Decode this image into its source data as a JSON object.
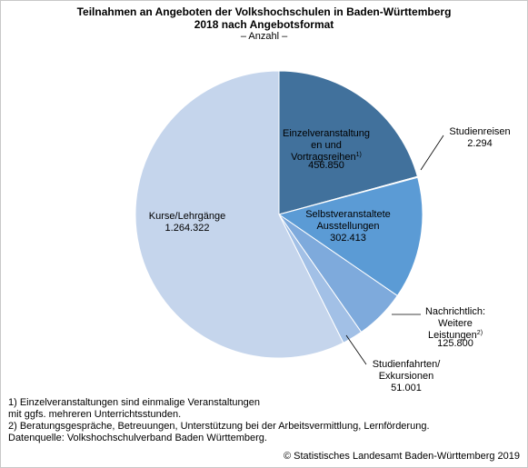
{
  "chart_data": {
    "type": "pie",
    "title_line1": "Teilnahmen an Angeboten der Volkshochschulen in Baden-Württemberg",
    "title_line2": "2018 nach Angebotsformat",
    "subtitle": "– Anzahl –",
    "slices": [
      {
        "label_lines": [
          "Einzelveranstaltung",
          "en und",
          "Vortragsreihen"
        ],
        "superscript": "1)",
        "value": 456850,
        "value_label": "456.850",
        "color": "#41719c"
      },
      {
        "label_lines": [
          "Studienreisen"
        ],
        "superscript": "",
        "value": 2294,
        "value_label": "2.294",
        "color": "#3d6a96"
      },
      {
        "label_lines": [
          "Selbstveranstaltete",
          "Ausstellungen"
        ],
        "superscript": "",
        "value": 302413,
        "value_label": "302.413",
        "color": "#5b9bd5"
      },
      {
        "label_lines": [
          "Nachrichtlich:",
          "Weitere",
          "Leistungen"
        ],
        "superscript": "2)",
        "value": 125800,
        "value_label": "125.800",
        "color": "#7eaadc"
      },
      {
        "label_lines": [
          "Studienfahrten/",
          "Exkursionen"
        ],
        "superscript": "",
        "value": 51001,
        "value_label": "51.001",
        "color": "#a2c0e6"
      },
      {
        "label_lines": [
          "Kurse/Lehrgänge"
        ],
        "superscript": "",
        "value": 1264322,
        "value_label": "1.264.322",
        "color": "#c5d5ec"
      }
    ]
  },
  "footnotes": {
    "note1_line1": "1) Einzelveranstaltungen sind einmalige Veranstaltungen",
    "note1_line2": "mit ggfs. mehreren Unterrichtsstunden.",
    "note2": "2) Beratungsgespräche, Betreuungen, Unterstützung bei der Arbeitsvermittlung, Lernförderung.",
    "source": "Datenquelle: Volkshochschulverband Baden Württemberg."
  },
  "copyright": "© Statistisches Landesamt Baden-Württemberg 2019"
}
